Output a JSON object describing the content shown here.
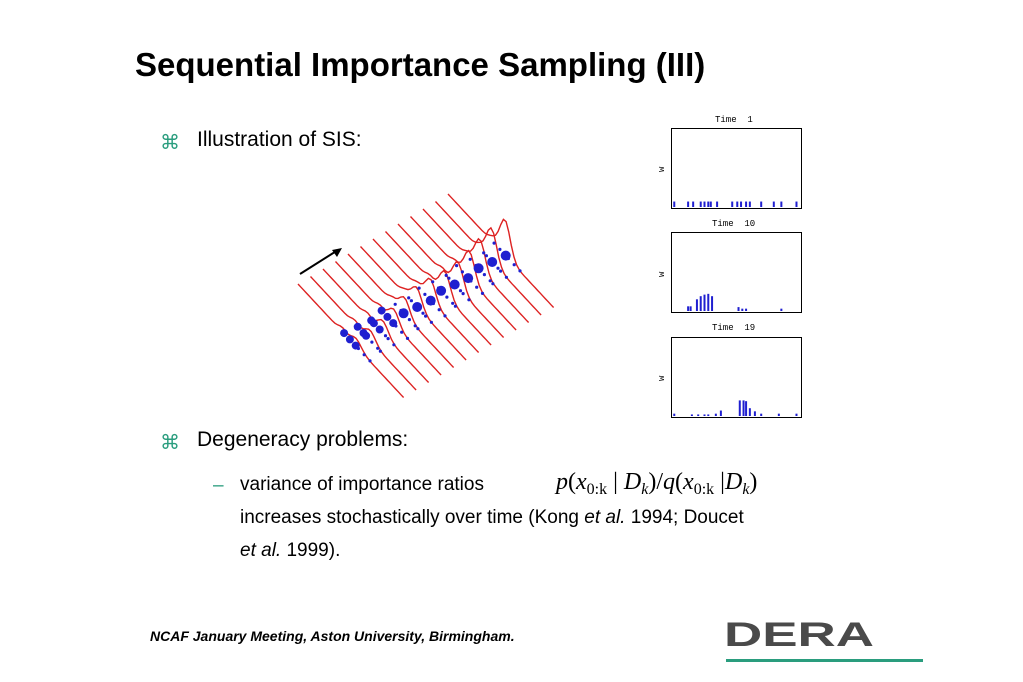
{
  "slide": {
    "title": "Sequential Importance Sampling (III)",
    "bullet_glyph": "⌘",
    "bullet1": "Illustration of SIS:",
    "bullet2": "Degeneracy problems:",
    "dash": "–",
    "sub_line1": "variance of importance ratios",
    "formula": {
      "p": "p",
      "x": "x",
      "sub_0k": "0:k",
      "bar": "|",
      "D": "D",
      "sub_k": "k",
      "slash": "/",
      "q": "q",
      "lp": "(",
      "rp": ")"
    },
    "sub_line2_a": "increases stochastically over time (Kong ",
    "sub_line2_etal": "et al.",
    "sub_line2_b": " 1994; Doucet",
    "sub_line3_etal": "et al.",
    "sub_line3_b": " 1999).",
    "footer": "NCAF January Meeting, Aston University, Birmingham.",
    "logo_text": "DERA"
  },
  "panels": [
    {
      "title": "Time  1",
      "ylabel": "w"
    },
    {
      "title": "Time  10",
      "ylabel": "w"
    },
    {
      "title": "Time  19",
      "ylabel": "w"
    }
  ],
  "chart_data": [
    {
      "type": "bar",
      "title": "Time  1",
      "ylabel": "w",
      "xlim": [
        0,
        100
      ],
      "ylim": [
        0,
        1
      ],
      "x": [
        1,
        12,
        16,
        22,
        25,
        28,
        30,
        35,
        47,
        51,
        54,
        58,
        61,
        70,
        80,
        86,
        98
      ],
      "values": [
        0.07,
        0.07,
        0.07,
        0.07,
        0.07,
        0.07,
        0.07,
        0.07,
        0.07,
        0.07,
        0.07,
        0.07,
        0.07,
        0.07,
        0.07,
        0.07,
        0.07
      ]
    },
    {
      "type": "bar",
      "title": "Time  10",
      "ylabel": "w",
      "xlim": [
        0,
        100
      ],
      "ylim": [
        0,
        1
      ],
      "x": [
        12,
        14,
        19,
        22,
        25,
        28,
        31,
        52,
        55,
        58,
        86
      ],
      "values": [
        0.06,
        0.06,
        0.15,
        0.19,
        0.21,
        0.22,
        0.19,
        0.05,
        0.03,
        0.03,
        0.03
      ]
    },
    {
      "type": "bar",
      "title": "Time  19",
      "ylabel": "w",
      "xlim": [
        0,
        100
      ],
      "ylim": [
        0,
        1
      ],
      "x": [
        1,
        15,
        20,
        25,
        28,
        34,
        38,
        53,
        56,
        58,
        61,
        65,
        70,
        84,
        98
      ],
      "values": [
        0.03,
        0.02,
        0.02,
        0.02,
        0.02,
        0.03,
        0.07,
        0.2,
        0.2,
        0.19,
        0.1,
        0.06,
        0.03,
        0.03,
        0.03
      ]
    }
  ],
  "colors": {
    "accent": "#2a9d7e",
    "curve": "#dd2222",
    "particle": "#1f1fd0",
    "logo": "#4a4a4a"
  }
}
